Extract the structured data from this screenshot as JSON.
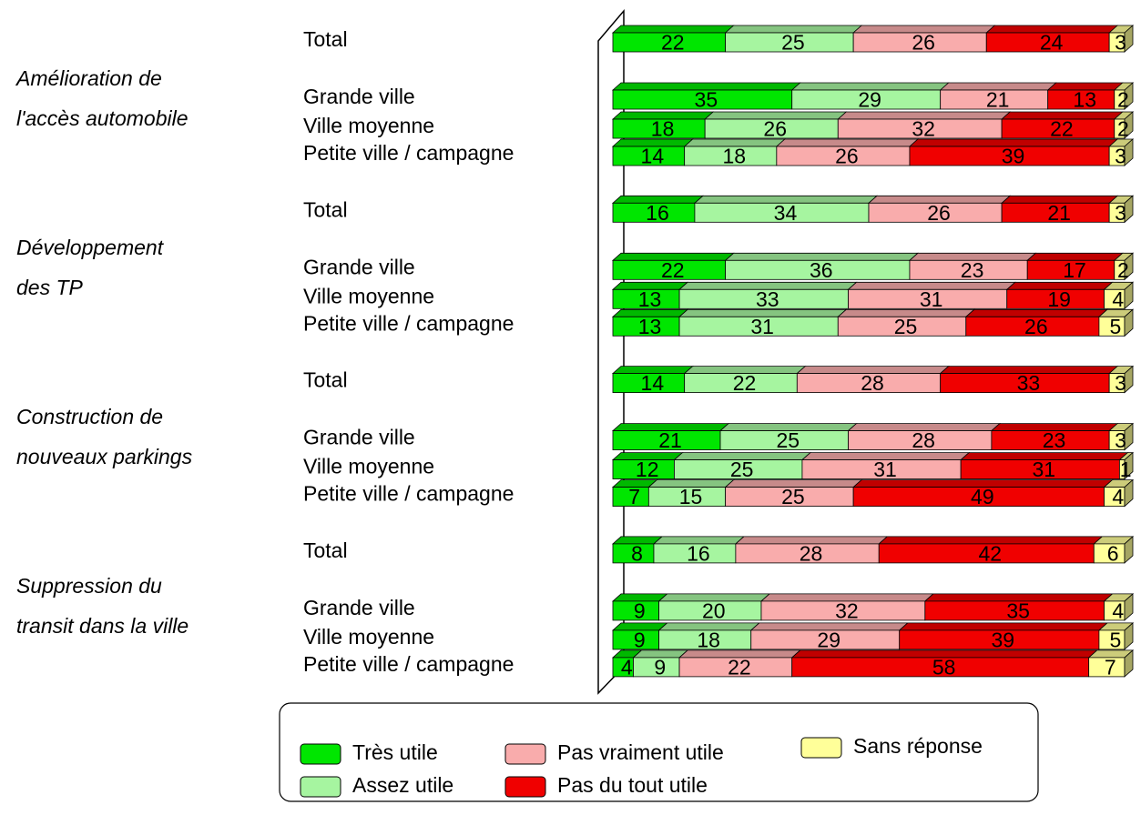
{
  "chart_data": {
    "type": "stacked-bar-3d",
    "groups": [
      {
        "lines": [
          "Amélioration de",
          "l'accès automobile"
        ]
      },
      {
        "lines": [
          "Développement",
          "des TP"
        ]
      },
      {
        "lines": [
          "Construction de",
          "nouveaux parkings"
        ]
      },
      {
        "lines": [
          "Suppression du",
          "transit dans la ville"
        ]
      }
    ],
    "categories": [
      "Total",
      "Grande ville",
      "Ville moyenne",
      "Petite ville / campagne",
      "Total",
      "Grande ville",
      "Ville moyenne",
      "Petite ville / campagne",
      "Total",
      "Grande ville",
      "Ville moyenne",
      "Petite ville / campagne",
      "Total",
      "Grande ville",
      "Ville moyenne",
      "Petite ville / campagne"
    ],
    "series": [
      {
        "name": "Très utile",
        "color": "#00e600",
        "values": [
          22,
          35,
          18,
          14,
          16,
          22,
          13,
          13,
          14,
          21,
          12,
          7,
          8,
          9,
          9,
          4
        ]
      },
      {
        "name": "Assez utile",
        "color": "#a6f5a0",
        "values": [
          25,
          29,
          26,
          18,
          34,
          36,
          33,
          31,
          22,
          25,
          25,
          15,
          16,
          20,
          18,
          9
        ]
      },
      {
        "name": "Pas vraiment utile",
        "color": "#f9acac",
        "values": [
          26,
          21,
          32,
          26,
          26,
          23,
          31,
          25,
          28,
          28,
          31,
          25,
          28,
          32,
          29,
          22
        ]
      },
      {
        "name": "Pas du tout utile",
        "color": "#f00000",
        "values": [
          24,
          13,
          22,
          39,
          21,
          17,
          19,
          26,
          33,
          23,
          31,
          49,
          42,
          35,
          39,
          58
        ]
      },
      {
        "name": "Sans réponse",
        "color": "#ffff99",
        "values": [
          3,
          2,
          2,
          3,
          3,
          2,
          4,
          5,
          3,
          3,
          1,
          4,
          6,
          4,
          5,
          7
        ]
      }
    ]
  }
}
